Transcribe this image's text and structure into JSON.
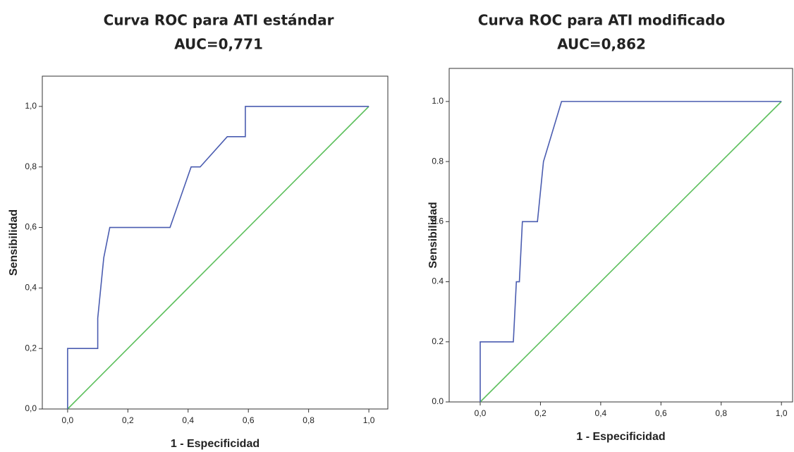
{
  "chart_data": [
    {
      "type": "line",
      "title": "Curva ROC para ATI estándar",
      "subtitle": "AUC=0,771",
      "x_label": "1 - Especificidad",
      "y_label": "Sensibilidad",
      "xlim": [
        -0.084,
        1.063
      ],
      "ylim": [
        0,
        1.1
      ],
      "xticks": [
        {
          "value": 0,
          "label": "0,0"
        },
        {
          "value": 0.2,
          "label": "0,2"
        },
        {
          "value": 0.4,
          "label": "0,4"
        },
        {
          "value": 0.6,
          "label": "0,6"
        },
        {
          "value": 0.8,
          "label": "0,8"
        },
        {
          "value": 1,
          "label": "1,0"
        }
      ],
      "yticks": [
        {
          "value": 0,
          "label": "0,0"
        },
        {
          "value": 0.2,
          "label": "0,2"
        },
        {
          "value": 0.4,
          "label": "0,4"
        },
        {
          "value": 0.6,
          "label": "0,6"
        },
        {
          "value": 0.8,
          "label": "0,8"
        },
        {
          "value": 1,
          "label": "1,0"
        }
      ],
      "series": [
        {
          "color": "#4a5cb0",
          "x": [
            0,
            0,
            0.1,
            0.1,
            0.12,
            0.14,
            0.34,
            0.41,
            0.44,
            0.53,
            0.59,
            0.59,
            1
          ],
          "values": [
            0,
            0.2,
            0.2,
            0.3,
            0.5,
            0.6,
            0.6,
            0.8,
            0.8,
            0.9,
            0.9,
            1,
            1
          ]
        },
        {
          "color": "#5cbf5c",
          "x": [
            0,
            1
          ],
          "values": [
            0,
            1
          ]
        }
      ]
    },
    {
      "type": "line",
      "title": "Curva ROC para ATI modificado",
      "subtitle": "AUC=0,862",
      "x_label": "1 - Especificidad",
      "y_label": "Sensibilidad",
      "xlim": [
        -0.103,
        1.037
      ],
      "ylim": [
        0,
        1.11
      ],
      "xticks": [
        {
          "value": 0,
          "label": "0,0"
        },
        {
          "value": 0.2,
          "label": "0,2"
        },
        {
          "value": 0.4,
          "label": "0,4"
        },
        {
          "value": 0.6,
          "label": "0,6"
        },
        {
          "value": 0.8,
          "label": "0,8"
        },
        {
          "value": 1,
          "label": "1,0"
        }
      ],
      "yticks": [
        {
          "value": 0,
          "label": "0.0"
        },
        {
          "value": 0.2,
          "label": "0.2"
        },
        {
          "value": 0.4,
          "label": "0.4"
        },
        {
          "value": 0.6,
          "label": "0.6"
        },
        {
          "value": 0.8,
          "label": "0.8"
        },
        {
          "value": 1,
          "label": "1.0"
        }
      ],
      "series": [
        {
          "color": "#4a5cb0",
          "x": [
            0,
            0,
            0.11,
            0.12,
            0.13,
            0.14,
            0.19,
            0.21,
            0.27,
            1
          ],
          "values": [
            0,
            0.2,
            0.2,
            0.4,
            0.4,
            0.6,
            0.6,
            0.8,
            1,
            1
          ]
        },
        {
          "color": "#5cbf5c",
          "x": [
            0,
            1
          ],
          "values": [
            0,
            1
          ]
        }
      ]
    }
  ]
}
